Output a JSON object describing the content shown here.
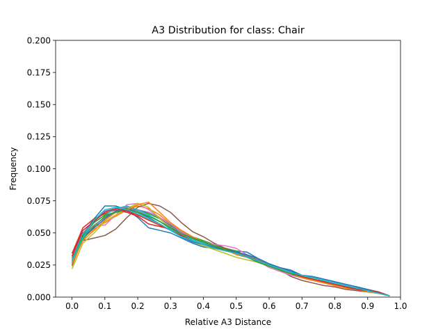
{
  "chart_data": {
    "type": "line",
    "title": "A3 Distribution for class: Chair",
    "xlabel": "Relative A3 Distance",
    "ylabel": "Frequency",
    "xlim": [
      -0.05,
      1.0
    ],
    "ylim": [
      0.0,
      0.2
    ],
    "x_ticks": [
      "0.0",
      "0.1",
      "0.2",
      "0.3",
      "0.4",
      "0.5",
      "0.6",
      "0.7",
      "0.8",
      "0.9",
      "1.0"
    ],
    "y_ticks": [
      "0.000",
      "0.025",
      "0.050",
      "0.075",
      "0.100",
      "0.125",
      "0.150",
      "0.175",
      "0.200"
    ],
    "grid": false,
    "x": [
      0.0,
      0.033,
      0.067,
      0.1,
      0.133,
      0.167,
      0.2,
      0.233,
      0.267,
      0.3,
      0.333,
      0.367,
      0.4,
      0.433,
      0.467,
      0.5,
      0.533,
      0.567,
      0.6,
      0.633,
      0.667,
      0.7,
      0.733,
      0.767,
      0.8,
      0.833,
      0.867,
      0.9,
      0.933,
      0.967
    ],
    "series": [
      {
        "color": "#1f77b4",
        "values": [
          0.028,
          0.049,
          0.061,
          0.071,
          0.071,
          0.068,
          0.062,
          0.054,
          0.052,
          0.05,
          0.046,
          0.042,
          0.039,
          0.038,
          0.037,
          0.036,
          0.035,
          0.03,
          0.026,
          0.023,
          0.021,
          0.017,
          0.016,
          0.014,
          0.012,
          0.01,
          0.008,
          0.006,
          0.004,
          0.001
        ]
      },
      {
        "color": "#ff7f0e",
        "values": [
          0.024,
          0.046,
          0.053,
          0.058,
          0.063,
          0.068,
          0.071,
          0.069,
          0.064,
          0.057,
          0.052,
          0.047,
          0.043,
          0.04,
          0.038,
          0.035,
          0.032,
          0.029,
          0.025,
          0.022,
          0.018,
          0.015,
          0.013,
          0.011,
          0.01,
          0.008,
          0.006,
          0.005,
          0.003,
          0.001
        ]
      },
      {
        "color": "#2ca02c",
        "values": [
          0.027,
          0.045,
          0.055,
          0.063,
          0.066,
          0.069,
          0.068,
          0.065,
          0.061,
          0.056,
          0.051,
          0.047,
          0.044,
          0.041,
          0.038,
          0.036,
          0.032,
          0.028,
          0.025,
          0.022,
          0.019,
          0.016,
          0.014,
          0.012,
          0.01,
          0.008,
          0.006,
          0.005,
          0.003,
          0.001
        ]
      },
      {
        "color": "#d62728",
        "values": [
          0.034,
          0.054,
          0.061,
          0.065,
          0.068,
          0.066,
          0.063,
          0.057,
          0.055,
          0.053,
          0.049,
          0.045,
          0.042,
          0.039,
          0.037,
          0.034,
          0.031,
          0.028,
          0.025,
          0.022,
          0.019,
          0.016,
          0.014,
          0.012,
          0.01,
          0.008,
          0.007,
          0.006,
          0.004,
          0.001
        ]
      },
      {
        "color": "#9467bd",
        "values": [
          0.03,
          0.05,
          0.059,
          0.067,
          0.069,
          0.07,
          0.068,
          0.066,
          0.062,
          0.055,
          0.05,
          0.046,
          0.042,
          0.039,
          0.037,
          0.034,
          0.031,
          0.028,
          0.024,
          0.021,
          0.018,
          0.016,
          0.013,
          0.011,
          0.009,
          0.008,
          0.006,
          0.005,
          0.003,
          0.001
        ]
      },
      {
        "color": "#8c564b",
        "values": [
          0.031,
          0.044,
          0.046,
          0.048,
          0.053,
          0.062,
          0.07,
          0.073,
          0.071,
          0.066,
          0.058,
          0.051,
          0.047,
          0.042,
          0.038,
          0.035,
          0.032,
          0.029,
          0.025,
          0.021,
          0.016,
          0.013,
          0.011,
          0.009,
          0.008,
          0.006,
          0.005,
          0.004,
          0.003,
          0.001
        ]
      },
      {
        "color": "#e377c2",
        "values": [
          0.026,
          0.048,
          0.056,
          0.056,
          0.064,
          0.072,
          0.073,
          0.068,
          0.062,
          0.057,
          0.051,
          0.046,
          0.043,
          0.041,
          0.04,
          0.038,
          0.033,
          0.028,
          0.023,
          0.02,
          0.017,
          0.015,
          0.013,
          0.011,
          0.009,
          0.007,
          0.006,
          0.005,
          0.003,
          0.001
        ]
      },
      {
        "color": "#7f7f7f",
        "values": [
          0.027,
          0.047,
          0.056,
          0.062,
          0.067,
          0.07,
          0.067,
          0.063,
          0.059,
          0.054,
          0.05,
          0.046,
          0.043,
          0.04,
          0.037,
          0.035,
          0.032,
          0.029,
          0.025,
          0.022,
          0.019,
          0.016,
          0.014,
          0.012,
          0.01,
          0.008,
          0.006,
          0.005,
          0.003,
          0.001
        ]
      },
      {
        "color": "#bcbd22",
        "values": [
          0.022,
          0.042,
          0.05,
          0.059,
          0.064,
          0.069,
          0.073,
          0.07,
          0.061,
          0.054,
          0.048,
          0.043,
          0.04,
          0.037,
          0.034,
          0.031,
          0.029,
          0.027,
          0.024,
          0.021,
          0.018,
          0.015,
          0.013,
          0.011,
          0.009,
          0.008,
          0.006,
          0.005,
          0.003,
          0.001
        ]
      },
      {
        "color": "#17becf",
        "values": [
          0.029,
          0.049,
          0.058,
          0.064,
          0.069,
          0.071,
          0.068,
          0.064,
          0.059,
          0.053,
          0.049,
          0.045,
          0.042,
          0.04,
          0.037,
          0.034,
          0.031,
          0.028,
          0.025,
          0.022,
          0.019,
          0.017,
          0.015,
          0.013,
          0.011,
          0.009,
          0.007,
          0.005,
          0.003,
          0.001
        ]
      },
      {
        "color": "#1f77b4",
        "values": [
          0.025,
          0.047,
          0.054,
          0.061,
          0.067,
          0.069,
          0.066,
          0.062,
          0.057,
          0.052,
          0.047,
          0.043,
          0.041,
          0.039,
          0.037,
          0.035,
          0.033,
          0.03,
          0.026,
          0.023,
          0.02,
          0.017,
          0.016,
          0.014,
          0.012,
          0.01,
          0.008,
          0.006,
          0.004,
          0.001
        ]
      },
      {
        "color": "#ff7f0e",
        "values": [
          0.026,
          0.044,
          0.052,
          0.06,
          0.066,
          0.068,
          0.072,
          0.074,
          0.066,
          0.058,
          0.052,
          0.047,
          0.043,
          0.04,
          0.037,
          0.033,
          0.031,
          0.028,
          0.025,
          0.022,
          0.018,
          0.015,
          0.013,
          0.011,
          0.009,
          0.007,
          0.006,
          0.004,
          0.003,
          0.001
        ]
      },
      {
        "color": "#2ca02c",
        "values": [
          0.028,
          0.048,
          0.058,
          0.064,
          0.066,
          0.068,
          0.066,
          0.063,
          0.059,
          0.054,
          0.049,
          0.046,
          0.043,
          0.04,
          0.037,
          0.034,
          0.031,
          0.027,
          0.024,
          0.021,
          0.018,
          0.016,
          0.014,
          0.012,
          0.01,
          0.008,
          0.006,
          0.005,
          0.003,
          0.001
        ]
      },
      {
        "color": "#d62728",
        "values": [
          0.032,
          0.052,
          0.059,
          0.066,
          0.069,
          0.067,
          0.064,
          0.06,
          0.056,
          0.052,
          0.048,
          0.044,
          0.041,
          0.038,
          0.036,
          0.034,
          0.031,
          0.028,
          0.025,
          0.022,
          0.019,
          0.016,
          0.014,
          0.012,
          0.01,
          0.008,
          0.006,
          0.005,
          0.004,
          0.001
        ]
      },
      {
        "color": "#17becf",
        "values": [
          0.028,
          0.046,
          0.06,
          0.068,
          0.07,
          0.068,
          0.065,
          0.061,
          0.057,
          0.052,
          0.047,
          0.044,
          0.041,
          0.038,
          0.036,
          0.034,
          0.031,
          0.028,
          0.025,
          0.022,
          0.019,
          0.017,
          0.015,
          0.013,
          0.011,
          0.009,
          0.007,
          0.005,
          0.003,
          0.001
        ]
      }
    ]
  }
}
